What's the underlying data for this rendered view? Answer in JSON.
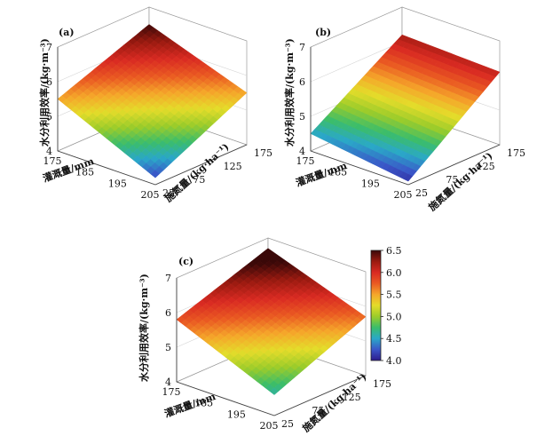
{
  "colors": {
    "colormap": [
      "#2d1b8c",
      "#3a56c8",
      "#2aa8c8",
      "#3bbd6a",
      "#9ccc2a",
      "#e4dc2a",
      "#f5a62a",
      "#ea5a22",
      "#d92a22",
      "#9a1a10",
      "#3a0808"
    ]
  },
  "chart_data": [
    {
      "type": "surface",
      "panel": "(a)",
      "x_label": "灌溉量/mm",
      "y_label": "施氮量/(kg·ha⁻¹)",
      "z_label": "水分利用效率/(kg·m⁻³)",
      "x_ticks": [
        "175",
        "185",
        "195",
        "205"
      ],
      "y_ticks": [
        "25",
        "75",
        "125",
        "175"
      ],
      "z_ticks": [
        "4",
        "5",
        "6",
        "7"
      ],
      "x": [
        175,
        205
      ],
      "y": [
        25,
        175
      ],
      "zlim": [
        4,
        7
      ],
      "z": [
        [
          5.5,
          6.5
        ],
        [
          4.2,
          5.5
        ]
      ]
    },
    {
      "type": "surface",
      "panel": "(b)",
      "x_label": "灌溉量/mm",
      "y_label": "施氮量/(kg·ha⁻¹)",
      "z_label": "水分利用效率/(kg·m⁻³)",
      "x_ticks": [
        "175",
        "185",
        "195",
        "205"
      ],
      "y_ticks": [
        "25",
        "75",
        "125",
        "175"
      ],
      "z_ticks": [
        "4",
        "5",
        "6",
        "7"
      ],
      "x": [
        175,
        205
      ],
      "y": [
        25,
        175
      ],
      "zlim": [
        4,
        7
      ],
      "z": [
        [
          4.5,
          6.2
        ],
        [
          4.1,
          6.1
        ]
      ]
    },
    {
      "type": "surface",
      "panel": "(c)",
      "x_label": "灌溉量/mm",
      "y_label": "施氮量/(kg·ha⁻¹)",
      "z_label": "水分利用效率/(kg·m⁻³)",
      "x_ticks": [
        "175",
        "185",
        "195",
        "205"
      ],
      "y_ticks": [
        "25",
        "75",
        "125",
        "175"
      ],
      "z_ticks": [
        "4",
        "5",
        "6",
        "7"
      ],
      "x": [
        175,
        205
      ],
      "y": [
        25,
        175
      ],
      "zlim": [
        4,
        7
      ],
      "z": [
        [
          5.8,
          6.7
        ],
        [
          4.6,
          5.7
        ]
      ],
      "colorbar": {
        "range": [
          4.0,
          6.5
        ],
        "ticks": [
          "6.5",
          "6.0",
          "5.5",
          "5.0",
          "4.5",
          "4.0"
        ]
      }
    }
  ]
}
